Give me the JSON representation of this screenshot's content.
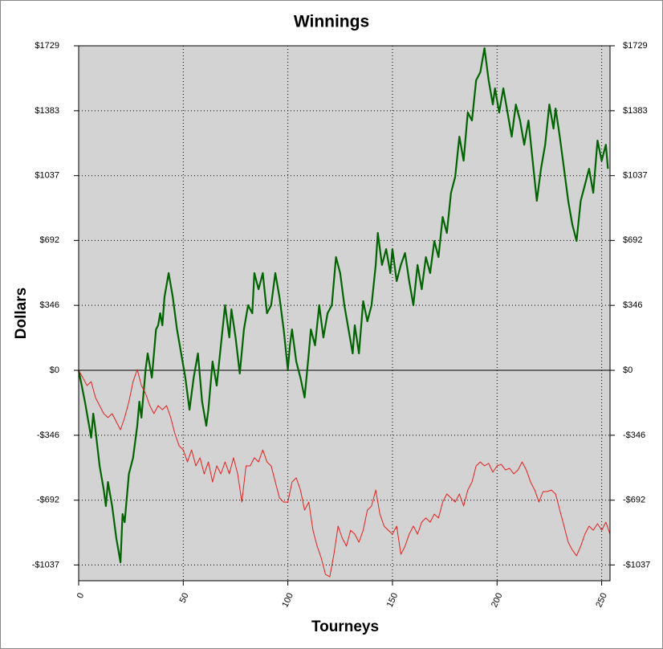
{
  "chart_data": {
    "type": "line",
    "title": "Winnings",
    "xlabel": "Tourneys",
    "ylabel": "Dollars",
    "xlim": [
      0,
      254
    ],
    "ylim": [
      -1121,
      1729
    ],
    "xticks": [
      0,
      50,
      100,
      150,
      200,
      250
    ],
    "yticks": [
      {
        "value": 1729,
        "label": "$1729"
      },
      {
        "value": 1383,
        "label": "$1383"
      },
      {
        "value": 1037,
        "label": "$1037"
      },
      {
        "value": 692,
        "label": "$692"
      },
      {
        "value": 346,
        "label": "$346"
      },
      {
        "value": 0,
        "label": "$0"
      },
      {
        "value": -346,
        "label": "-$346"
      },
      {
        "value": -692,
        "label": "-$692"
      },
      {
        "value": -1037,
        "label": "-$1037"
      }
    ],
    "grid": true,
    "background": "#d3d3d3",
    "series": [
      {
        "color": "#006400",
        "width": 2.2,
        "x": [
          0,
          3,
          5,
          6,
          7,
          8,
          10,
          12,
          13,
          14,
          16,
          18,
          20,
          21,
          22,
          24,
          26,
          28,
          29,
          30,
          32,
          33,
          35,
          37,
          38,
          39,
          40,
          41,
          43,
          45,
          47,
          49,
          51,
          53,
          55,
          57,
          59,
          61,
          62,
          64,
          66,
          68,
          70,
          72,
          73,
          75,
          77,
          79,
          81,
          83,
          84,
          86,
          88,
          90,
          92,
          94,
          96,
          98,
          100,
          101,
          102,
          104,
          106,
          108,
          110,
          111,
          113,
          115,
          117,
          119,
          121,
          123,
          125,
          127,
          129,
          131,
          132,
          134,
          136,
          138,
          140,
          142,
          143,
          145,
          147,
          149,
          150,
          152,
          154,
          156,
          158,
          160,
          162,
          164,
          166,
          168,
          170,
          172,
          174,
          176,
          178,
          180,
          182,
          184,
          186,
          188,
          190,
          192,
          194,
          196,
          198,
          199,
          201,
          203,
          205,
          207,
          209,
          211,
          213,
          215,
          217,
          219,
          221,
          223,
          225,
          227,
          228,
          230,
          232,
          234,
          236,
          238,
          240,
          242,
          244,
          246,
          248,
          250,
          252,
          253
        ],
        "values": [
          0,
          -167,
          -295,
          -359,
          -231,
          -317,
          -509,
          -638,
          -723,
          -595,
          -723,
          -894,
          -1023,
          -766,
          -809,
          -552,
          -466,
          -295,
          -167,
          -252,
          4,
          90,
          -39,
          218,
          240,
          304,
          240,
          389,
          518,
          389,
          218,
          90,
          -39,
          -210,
          -39,
          90,
          -167,
          -295,
          -210,
          47,
          -81,
          133,
          347,
          175,
          325,
          175,
          -17,
          218,
          347,
          304,
          518,
          432,
          518,
          304,
          347,
          518,
          389,
          218,
          4,
          133,
          218,
          47,
          -39,
          -145,
          90,
          218,
          133,
          347,
          175,
          304,
          347,
          603,
          518,
          347,
          218,
          90,
          240,
          90,
          368,
          261,
          347,
          561,
          732,
          561,
          646,
          518,
          646,
          475,
          561,
          625,
          475,
          347,
          561,
          432,
          603,
          518,
          689,
          603,
          817,
          732,
          946,
          1031,
          1245,
          1117,
          1374,
          1331,
          1545,
          1588,
          1716,
          1545,
          1416,
          1502,
          1374,
          1502,
          1374,
          1245,
          1416,
          1331,
          1202,
          1331,
          1117,
          903,
          1074,
          1202,
          1416,
          1288,
          1395,
          1245,
          1074,
          903,
          775,
          689,
          903,
          988,
          1074,
          946,
          1224,
          1117,
          1202,
          1074
        ]
      },
      {
        "color": "#e8201c",
        "width": 1,
        "x": [
          0,
          2,
          4,
          6,
          8,
          10,
          12,
          14,
          16,
          18,
          20,
          22,
          24,
          26,
          28,
          30,
          32,
          34,
          36,
          38,
          40,
          42,
          44,
          46,
          48,
          50,
          52,
          54,
          56,
          58,
          60,
          62,
          64,
          66,
          68,
          70,
          72,
          74,
          76,
          78,
          80,
          82,
          84,
          86,
          88,
          90,
          92,
          94,
          96,
          98,
          100,
          102,
          104,
          106,
          108,
          110,
          112,
          114,
          116,
          118,
          120,
          122,
          124,
          126,
          128,
          130,
          132,
          134,
          136,
          138,
          140,
          142,
          144,
          146,
          148,
          150,
          152,
          154,
          156,
          158,
          160,
          162,
          164,
          166,
          168,
          170,
          172,
          174,
          176,
          178,
          180,
          182,
          184,
          186,
          188,
          190,
          192,
          194,
          196,
          198,
          200,
          202,
          204,
          206,
          208,
          210,
          212,
          214,
          216,
          218,
          220,
          222,
          224,
          226,
          228,
          230,
          232,
          234,
          236,
          238,
          240,
          242,
          244,
          246,
          248,
          250,
          252,
          254
        ],
        "values": [
          0,
          -39,
          -81,
          -60,
          -145,
          -188,
          -231,
          -252,
          -231,
          -274,
          -317,
          -252,
          -167,
          -60,
          4,
          -81,
          -124,
          -188,
          -231,
          -188,
          -210,
          -188,
          -252,
          -338,
          -402,
          -424,
          -488,
          -424,
          -509,
          -466,
          -552,
          -488,
          -595,
          -509,
          -552,
          -488,
          -552,
          -466,
          -552,
          -702,
          -509,
          -509,
          -466,
          -488,
          -424,
          -488,
          -509,
          -595,
          -680,
          -702,
          -702,
          -595,
          -573,
          -638,
          -745,
          -702,
          -852,
          -937,
          -1001,
          -1087,
          -1100,
          -980,
          -830,
          -894,
          -937,
          -852,
          -873,
          -916,
          -852,
          -745,
          -723,
          -638,
          -766,
          -830,
          -852,
          -873,
          -830,
          -980,
          -937,
          -873,
          -830,
          -873,
          -809,
          -787,
          -809,
          -766,
          -787,
          -702,
          -659,
          -680,
          -702,
          -659,
          -723,
          -638,
          -595,
          -509,
          -488,
          -509,
          -496,
          -543,
          -509,
          -501,
          -531,
          -522,
          -552,
          -531,
          -488,
          -531,
          -595,
          -638,
          -702,
          -646,
          -646,
          -638,
          -659,
          -745,
          -830,
          -916,
          -958,
          -988,
          -937,
          -873,
          -830,
          -852,
          -817,
          -852,
          -809,
          -873
        ]
      }
    ]
  }
}
